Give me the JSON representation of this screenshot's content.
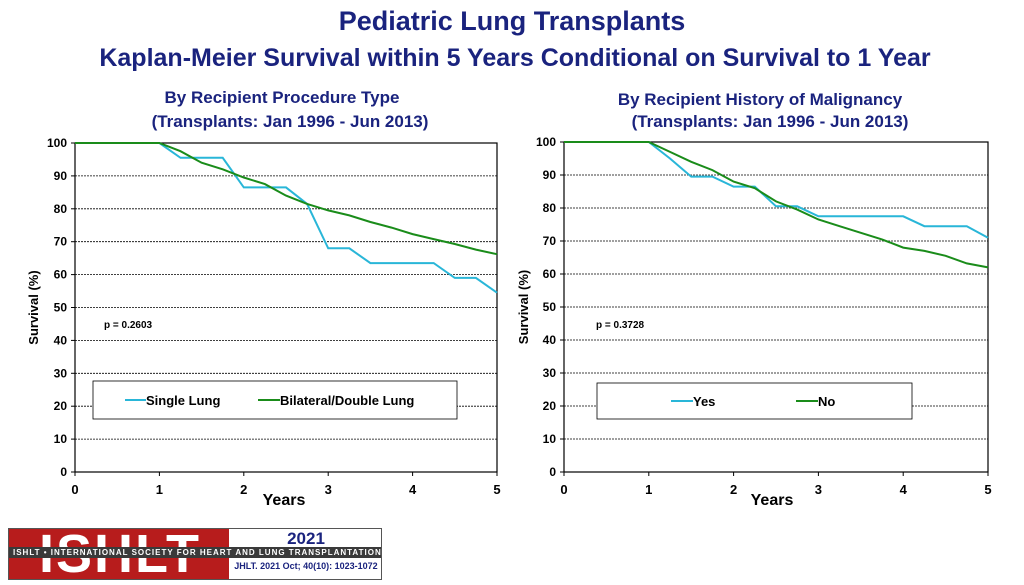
{
  "title": "Pediatric Lung Transplants",
  "subtitle": "Kaplan-Meier Survival within 5 Years Conditional on Survival to 1 Year",
  "colors": {
    "title": "#1a237e",
    "series_a": "#29b6d8",
    "series_b": "#1a8c1a"
  },
  "chart_data": [
    {
      "type": "line",
      "title": "By Recipient Procedure Type",
      "subtitle": "(Transplants: Jan 1996 - Jun 2013)",
      "xlabel": "Years",
      "ylabel": "Survival (%)",
      "xlim": [
        0,
        5
      ],
      "ylim": [
        0,
        100
      ],
      "xticks": [
        0,
        1,
        2,
        3,
        4,
        5
      ],
      "yticks": [
        0,
        10,
        20,
        30,
        40,
        50,
        60,
        70,
        80,
        90,
        100
      ],
      "grid": true,
      "annotation": "p  = 0.2603",
      "legend_position": "lower-left",
      "series": [
        {
          "name": "Single Lung",
          "color": "#29b6d8",
          "x": [
            0,
            1,
            1.25,
            1.75,
            2,
            2.5,
            2.75,
            3,
            3.25,
            3.5,
            4.25,
            4.5,
            4.75,
            5
          ],
          "y": [
            100,
            100,
            95.5,
            95.5,
            86.5,
            86.5,
            81.5,
            68,
            68,
            63.5,
            63.5,
            59,
            59,
            54.5
          ]
        },
        {
          "name": "Bilateral/Double Lung",
          "color": "#1a8c1a",
          "x": [
            0,
            1,
            1.25,
            1.5,
            1.75,
            2,
            2.25,
            2.5,
            2.75,
            3,
            3.25,
            3.5,
            3.75,
            4,
            4.25,
            4.5,
            4.75,
            5
          ],
          "y": [
            100,
            100,
            97.5,
            94,
            92,
            89.5,
            87.5,
            84,
            81.5,
            79.5,
            78,
            76,
            74.3,
            72.3,
            70.8,
            69.3,
            67.6,
            66.2
          ]
        }
      ]
    },
    {
      "type": "line",
      "title": "By Recipient History of Malignancy",
      "subtitle": "(Transplants: Jan 1996 - Jun 2013)",
      "xlabel": "Years",
      "ylabel": "Survival (%)",
      "xlim": [
        0,
        5
      ],
      "ylim": [
        0,
        100
      ],
      "xticks": [
        0,
        1,
        2,
        3,
        4,
        5
      ],
      "yticks": [
        0,
        10,
        20,
        30,
        40,
        50,
        60,
        70,
        80,
        90,
        100
      ],
      "grid": true,
      "annotation": "p  = 0.3728",
      "legend_position": "lower-left",
      "series": [
        {
          "name": "Yes",
          "color": "#29b6d8",
          "x": [
            0,
            1,
            1.25,
            1.5,
            1.75,
            2,
            2.25,
            2.5,
            2.75,
            3,
            3.25,
            3.5,
            3.75,
            4,
            4.25,
            4.5,
            4.75,
            5
          ],
          "y": [
            100,
            100,
            95,
            89.5,
            89.5,
            86.5,
            86.5,
            80.5,
            80.5,
            77.5,
            77.5,
            77.5,
            77.5,
            77.5,
            74.5,
            74.5,
            74.5,
            71
          ]
        },
        {
          "name": "No",
          "color": "#1a8c1a",
          "x": [
            0,
            1,
            1.25,
            1.5,
            1.75,
            2,
            2.25,
            2.5,
            2.75,
            3,
            3.25,
            3.5,
            3.75,
            4,
            4.25,
            4.5,
            4.75,
            5
          ],
          "y": [
            100,
            100,
            97,
            94,
            91.5,
            88,
            86,
            82,
            79.5,
            76.5,
            74.5,
            72.5,
            70.5,
            68,
            67,
            65.5,
            63.2,
            62
          ]
        }
      ]
    }
  ],
  "footer": {
    "logo_text": "ISHLT",
    "logo_band": "ISHLT • INTERNATIONAL SOCIETY FOR HEART AND LUNG TRANSPLANTATION",
    "year": "2021",
    "citation": "JHLT. 2021 Oct; 40(10): 1023-1072"
  }
}
